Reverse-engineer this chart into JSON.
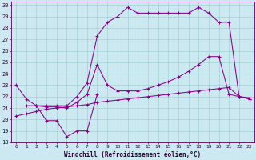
{
  "xlabel": "Windchill (Refroidissement éolien,°C)",
  "bg_color": "#cce8f0",
  "grid_color": "#99cccc",
  "line_color": "#880088",
  "xlim": [
    -0.5,
    23.5
  ],
  "ylim": [
    18,
    30.3
  ],
  "yticks": [
    18,
    19,
    20,
    21,
    22,
    23,
    24,
    25,
    26,
    27,
    28,
    29,
    30
  ],
  "xticks": [
    0,
    1,
    2,
    3,
    4,
    5,
    6,
    7,
    8,
    9,
    10,
    11,
    12,
    13,
    14,
    15,
    16,
    17,
    18,
    19,
    20,
    21,
    22,
    23
  ],
  "line1_x": [
    0,
    1,
    2,
    3,
    4,
    5,
    6,
    7,
    8
  ],
  "line1_y": [
    23.0,
    21.8,
    21.2,
    19.9,
    19.9,
    18.5,
    19.0,
    19.0,
    22.2
  ],
  "line2_x": [
    0,
    1,
    2,
    3,
    4,
    5,
    6,
    7,
    8,
    9,
    10,
    11,
    12,
    13,
    14,
    15,
    16,
    17,
    18,
    19,
    20,
    21,
    22,
    23
  ],
  "line2_y": [
    20.3,
    20.5,
    20.7,
    20.9,
    21.0,
    21.1,
    21.2,
    21.3,
    21.5,
    21.6,
    21.7,
    21.8,
    21.9,
    22.0,
    22.1,
    22.2,
    22.3,
    22.4,
    22.5,
    22.6,
    22.7,
    22.8,
    22.0,
    21.9
  ],
  "line3_x": [
    2,
    3,
    4,
    5,
    6,
    7,
    8,
    9,
    10,
    11,
    12,
    13,
    14,
    15,
    16,
    17,
    18,
    19,
    20,
    21,
    22,
    23
  ],
  "line3_y": [
    21.2,
    21.1,
    21.1,
    21.0,
    21.5,
    22.2,
    24.8,
    23.0,
    22.5,
    22.5,
    22.5,
    22.7,
    23.0,
    23.3,
    23.7,
    24.2,
    24.8,
    25.5,
    25.5,
    22.2,
    22.0,
    21.8
  ],
  "line4_x": [
    1,
    2,
    3,
    4,
    5,
    6,
    7,
    8,
    9,
    10,
    11,
    12,
    13,
    14,
    15,
    16,
    17,
    18,
    19,
    20,
    21,
    22,
    23
  ],
  "line4_y": [
    21.2,
    21.2,
    21.2,
    21.2,
    21.2,
    22.0,
    23.2,
    27.3,
    28.5,
    29.0,
    29.8,
    29.3,
    29.3,
    29.3,
    29.3,
    29.3,
    29.3,
    29.8,
    29.3,
    28.5,
    28.5,
    22.0,
    21.8
  ]
}
